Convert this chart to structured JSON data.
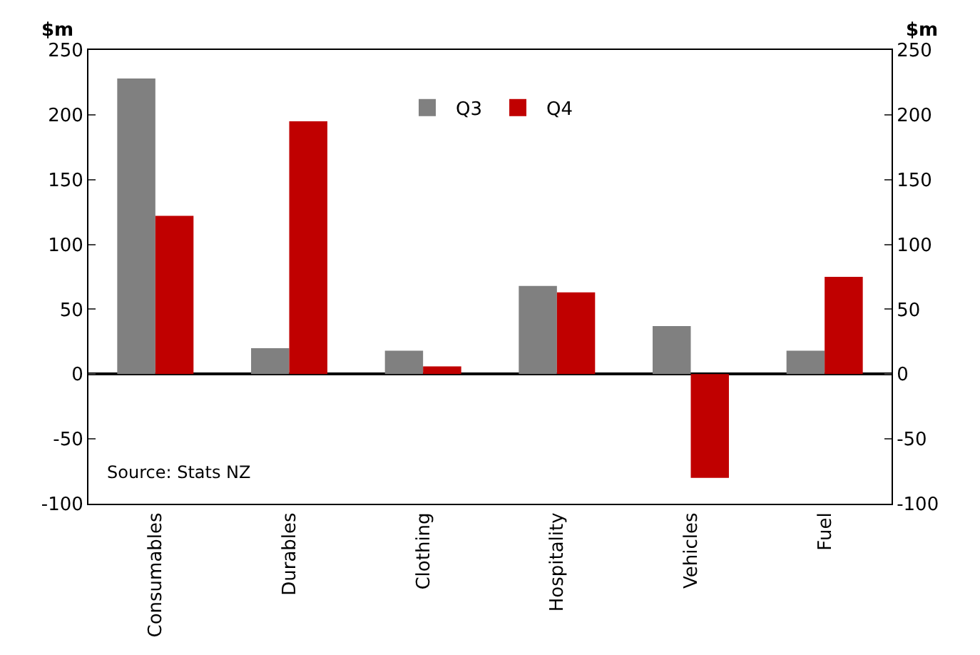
{
  "chart_data": {
    "type": "bar",
    "ylabel": "$m",
    "y2label": "$m",
    "categories": [
      "Consumables",
      "Durables",
      "Clothing",
      "Hospitality",
      "Vehicles",
      "Fuel"
    ],
    "series": [
      {
        "name": "Q3",
        "color": "#808080",
        "values": [
          228,
          20,
          18,
          68,
          37,
          18
        ]
      },
      {
        "name": "Q4",
        "color": "#c00000",
        "values": [
          122,
          195,
          6,
          63,
          -80,
          75
        ]
      }
    ],
    "ylim": [
      -100,
      250
    ],
    "yticks": [
      -100,
      -50,
      0,
      50,
      100,
      150,
      200,
      250
    ],
    "y2lim": [
      -100,
      250
    ],
    "y2ticks": [
      -100,
      -50,
      0,
      50,
      100,
      150,
      200,
      250
    ],
    "annotations": [
      "Source: Stats NZ"
    ],
    "legend": "top"
  }
}
